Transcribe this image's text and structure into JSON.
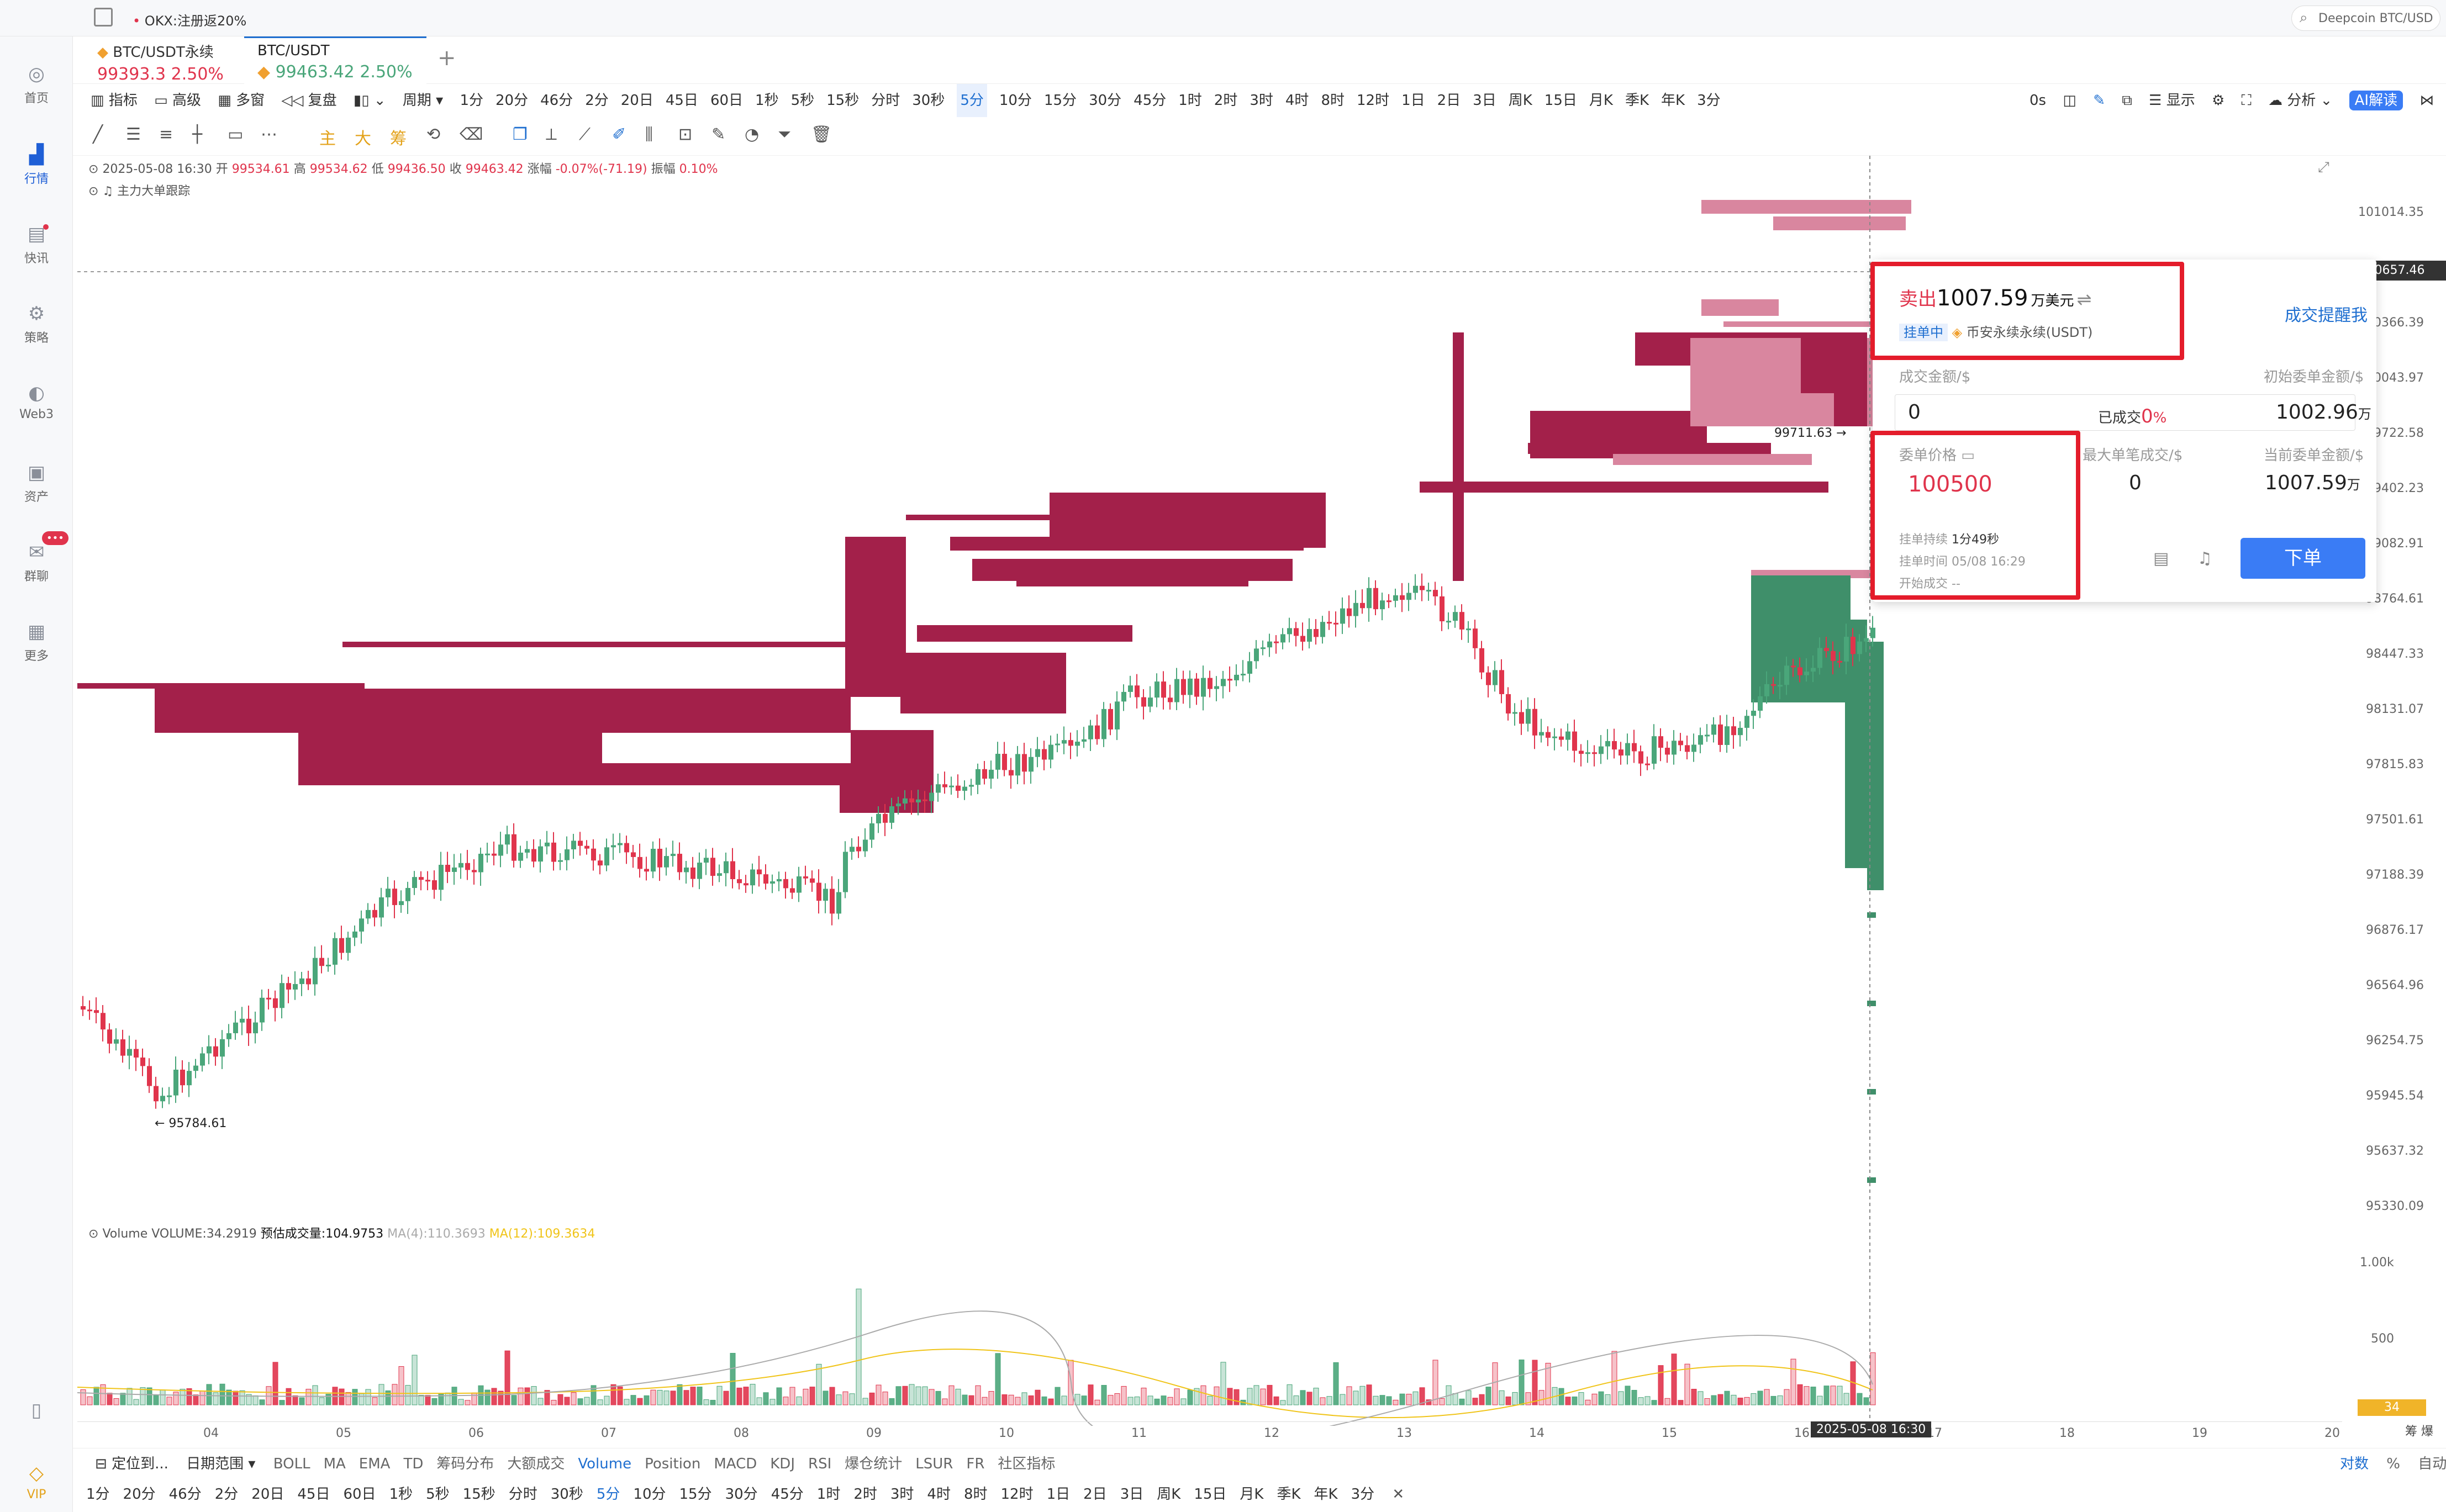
{
  "topbar": {
    "promo": "OKX:注册返20%",
    "search": "Deepcoin BTC/USD"
  },
  "sidebar": [
    {
      "label": "首页",
      "icon": "home-icon"
    },
    {
      "label": "行情",
      "icon": "chart-icon",
      "active": true
    },
    {
      "label": "快讯",
      "icon": "news-icon"
    },
    {
      "label": "策略",
      "icon": "strategy-icon"
    },
    {
      "label": "Web3",
      "icon": "web3-icon"
    },
    {
      "label": "资产",
      "icon": "wallet-icon"
    },
    {
      "label": "群聊",
      "icon": "chat-icon",
      "badge": "•••"
    },
    {
      "label": "更多",
      "icon": "grid-icon"
    },
    {
      "label": "VIP",
      "icon": "diamond-icon"
    }
  ],
  "tabs": [
    {
      "name": "BTC/USDT永续",
      "price": "99393.3",
      "change": "2.50%"
    },
    {
      "name": "BTC/USDT",
      "price": "99463.42",
      "change": "2.50%"
    }
  ],
  "toolbar1": {
    "left": [
      "指标",
      "高级",
      "多窗",
      "复盘",
      "周期"
    ],
    "periods": [
      "1分",
      "20分",
      "46分",
      "2分",
      "20日",
      "45日",
      "60日",
      "1秒",
      "5秒",
      "15秒",
      "分时",
      "30秒",
      "5分",
      "10分",
      "15分",
      "30分",
      "45分",
      "1时",
      "2时",
      "3时",
      "4时",
      "8时",
      "12时",
      "1日",
      "2日",
      "3日",
      "周K",
      "15日",
      "月K",
      "季K",
      "年K",
      "3分"
    ],
    "selected": "5分",
    "right": [
      "0s",
      "显示",
      "分析",
      "AI解读"
    ]
  },
  "drawtools": [
    "主",
    "大",
    "筹"
  ],
  "ohlc": {
    "date": "2025-05-08 16:30",
    "open_label": "开",
    "open": "99534.61",
    "high_label": "高",
    "high": "99534.62",
    "low_label": "低",
    "low": "99436.50",
    "close_label": "收",
    "close": "99463.42",
    "chg_label": "涨幅",
    "chg": "-0.07%(-71.19)",
    "amp_label": "振幅",
    "amp": "0.10%",
    "sub": "主力大单跟踪"
  },
  "yaxis": [
    "101014.35",
    "100657.46",
    "100366.39",
    "100043.97",
    "99722.58",
    "99402.23",
    "99082.91",
    "98764.61",
    "98447.33",
    "98131.07",
    "97815.83",
    "97501.61",
    "97188.39",
    "96876.17",
    "96564.96",
    "96254.75",
    "95945.54",
    "95637.32",
    "95330.09"
  ],
  "price_tag": "100657.46",
  "xaxis": [
    "04",
    "05",
    "06",
    "07",
    "08",
    "09",
    "10",
    "11",
    "12",
    "13",
    "14",
    "15",
    "16",
    "17",
    "18",
    "19",
    "20"
  ],
  "cursor_time": "2025-05-08 16:30",
  "low_label": "← 95784.61",
  "hi_label": "99711.63 →",
  "volume": {
    "title": "Volume",
    "vol": "VOLUME:34.2919",
    "est": "预估成交量:104.9753",
    "ma4": "MA(4):110.3693",
    "ma12": "MA(12):109.3634",
    "y": [
      "1.00k",
      "500"
    ],
    "last": "34"
  },
  "panel": {
    "side": "卖出",
    "amount": "1007.59",
    "unit": "万美元",
    "status": "挂单中",
    "exchange": "币安永续永续(USDT)",
    "remind": "成交提醒我",
    "deal_label": "成交金额/$",
    "deal": "0",
    "filled_label": "已成交",
    "filled": "0",
    "filled_pct": "%",
    "init_label": "初始委单金额/$",
    "init": "1002.96",
    "init_unit": "万",
    "price_label": "委单价格",
    "price": "100500",
    "max_label": "最大单笔成交/$",
    "max": "0",
    "cur_label": "当前委单金额/$",
    "cur": "1007.59",
    "cur_unit": "万",
    "dur_label": "挂单持续",
    "dur": "1分49秒",
    "time_label": "挂单时间",
    "time": "05/08 16:29",
    "start_label": "开始成交",
    "start": "--",
    "order_btn": "下单"
  },
  "bottom1": {
    "locate": "定位到...",
    "range": "日期范围",
    "inds": [
      "BOLL",
      "MA",
      "EMA",
      "TD",
      "筹码分布",
      "大额成交",
      "Volume",
      "Position",
      "MACD",
      "KDJ",
      "RSI",
      "爆仓统计",
      "LSUR",
      "FR",
      "社区指标"
    ],
    "selected": "Volume",
    "right": [
      "对数",
      "%",
      "自动"
    ]
  },
  "bottom2": {
    "periods": [
      "1分",
      "20分",
      "46分",
      "2分",
      "20日",
      "45日",
      "60日",
      "1秒",
      "5秒",
      "15秒",
      "分时",
      "30秒",
      "5分",
      "10分",
      "15分",
      "30分",
      "45分",
      "1时",
      "2时",
      "3时",
      "4时",
      "8时",
      "12时",
      "1日",
      "2日",
      "3日",
      "周K",
      "15日",
      "月K",
      "季K",
      "年K",
      "3分"
    ],
    "selected": "5分"
  },
  "colors": {
    "up": "#4aa67a",
    "down": "#e0344c",
    "heat_dark": "#a3204a",
    "heat_light": "#d9869f",
    "heat_green": "#3f8f6a",
    "accent": "#1f6fd0"
  }
}
